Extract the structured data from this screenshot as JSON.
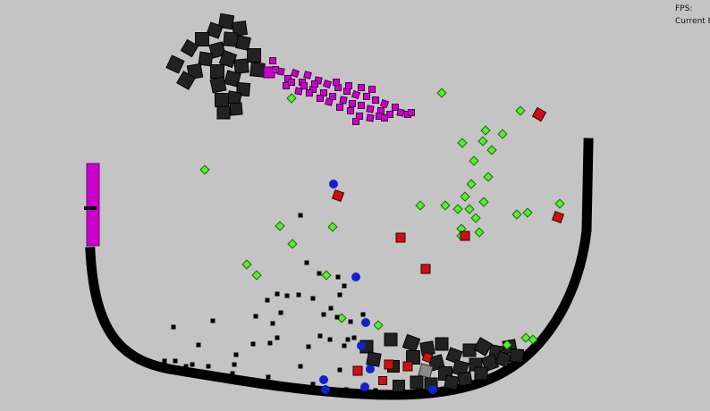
{
  "hud": {
    "fps_label": "FPS:",
    "current_label": "Current Bl"
  },
  "colors": {
    "background": "#c4c4c4",
    "container": "#000000",
    "dark_block": "#222222",
    "magenta": "#cc00cc",
    "green": "#55ee33",
    "red": "#cc1111",
    "blue": "#1122cc",
    "grey_block": "#8a8a8a"
  }
}
